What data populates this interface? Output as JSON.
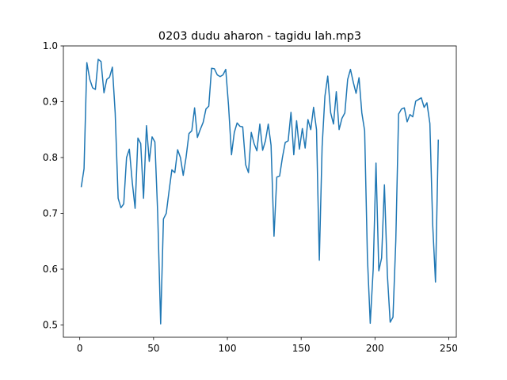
{
  "chart_data": {
    "type": "line",
    "title": "0203 dudu aharon - tagidu lah.mp3",
    "x": [
      1,
      2.9,
      4.8,
      6.8,
      8.7,
      10.6,
      12.5,
      14.4,
      16.4,
      18.3,
      20.2,
      22.1,
      24.0,
      26.0,
      27.9,
      29.8,
      31.7,
      33.6,
      35.6,
      37.5,
      39.4,
      41.3,
      43.2,
      45.2,
      47.1,
      49.0,
      50.9,
      52.8,
      54.8,
      56.7,
      58.6,
      60.5,
      62.4,
      64.4,
      66.3,
      68.2,
      70.1,
      72.0,
      74.0,
      75.9,
      77.8,
      79.7,
      81.6,
      83.6,
      85.5,
      87.4,
      89.3,
      91.2,
      93.2,
      95.1,
      97.0,
      98.9,
      100.8,
      102.8,
      104.7,
      106.6,
      108.5,
      110.4,
      112.4,
      114.3,
      116.2,
      118.1,
      120.0,
      122.0,
      123.9,
      125.8,
      127.7,
      129.6,
      131.6,
      133.5,
      135.4,
      137.3,
      139.2,
      141.2,
      143.1,
      145.0,
      146.9,
      148.8,
      150.8,
      152.7,
      154.6,
      156.5,
      158.4,
      160.4,
      162.3,
      164.2,
      166.1,
      168.0,
      170.0,
      171.9,
      173.8,
      175.7,
      177.6,
      179.6,
      181.5,
      183.4,
      185.3,
      187.2,
      189.2,
      191.1,
      193.0,
      194.9,
      196.8,
      198.8,
      200.7,
      202.6,
      204.5,
      206.4,
      208.4,
      210.3,
      212.2,
      214.1,
      216.0,
      218.0,
      219.9,
      221.8,
      223.7,
      225.6,
      227.6,
      229.5,
      231.4,
      233.3,
      235.2,
      237.2,
      239.1,
      241.0,
      242.9
    ],
    "series": [
      {
        "color": "#1f77b4",
        "values": [
          0.747,
          0.78,
          0.97,
          0.94,
          0.925,
          0.922,
          0.976,
          0.972,
          0.916,
          0.94,
          0.944,
          0.962,
          0.88,
          0.727,
          0.71,
          0.717,
          0.8,
          0.815,
          0.755,
          0.709,
          0.835,
          0.825,
          0.727,
          0.857,
          0.793,
          0.837,
          0.828,
          0.7,
          0.502,
          0.69,
          0.7,
          0.74,
          0.778,
          0.773,
          0.814,
          0.8,
          0.768,
          0.8,
          0.843,
          0.848,
          0.889,
          0.836,
          0.85,
          0.863,
          0.887,
          0.892,
          0.96,
          0.959,
          0.948,
          0.945,
          0.948,
          0.958,
          0.893,
          0.805,
          0.845,
          0.862,
          0.856,
          0.855,
          0.787,
          0.773,
          0.845,
          0.825,
          0.812,
          0.86,
          0.813,
          0.83,
          0.86,
          0.822,
          0.659,
          0.765,
          0.767,
          0.8,
          0.827,
          0.83,
          0.881,
          0.805,
          0.866,
          0.815,
          0.852,
          0.817,
          0.868,
          0.85,
          0.89,
          0.85,
          0.616,
          0.82,
          0.91,
          0.946,
          0.88,
          0.86,
          0.918,
          0.85,
          0.87,
          0.88,
          0.94,
          0.958,
          0.935,
          0.915,
          0.943,
          0.88,
          0.848,
          0.62,
          0.503,
          0.6,
          0.79,
          0.597,
          0.62,
          0.751,
          0.59,
          0.505,
          0.514,
          0.65,
          0.878,
          0.887,
          0.889,
          0.864,
          0.877,
          0.873,
          0.901,
          0.904,
          0.907,
          0.89,
          0.898,
          0.861,
          0.68,
          0.577,
          0.832
        ]
      }
    ],
    "xlim": [
      -11.1,
      255.1
    ],
    "xticks": [
      0,
      50,
      100,
      150,
      200,
      250
    ],
    "ylim": [
      0.478,
      1.0
    ],
    "yticks": [
      0.5,
      0.6,
      0.7,
      0.8,
      0.9,
      {
        "value": 1,
        "label": "1.0"
      }
    ]
  }
}
